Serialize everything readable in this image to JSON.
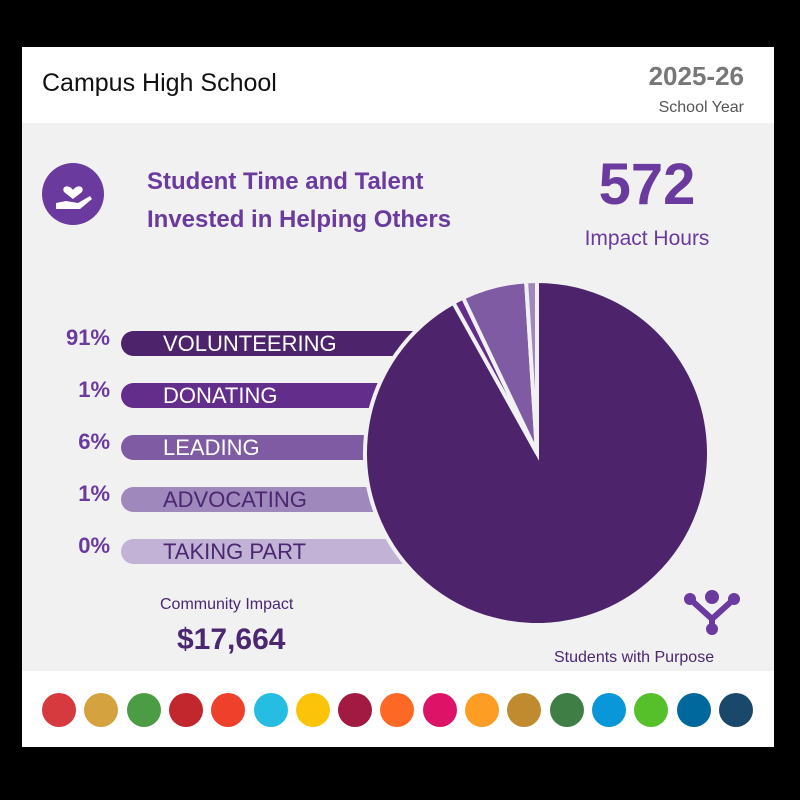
{
  "header": {
    "school": "Campus High School",
    "year": "2025-26",
    "year_label": "School Year"
  },
  "title_lines": [
    "Student Time and Talent",
    "Invested in Helping Others"
  ],
  "impact": {
    "hours": "572",
    "hours_label": "Impact Hours",
    "community_label": "Community Impact",
    "community_value": "$17,664"
  },
  "brand": "Students with Purpose",
  "chart_data": {
    "type": "pie",
    "categories": [
      "VOLUNTEERING",
      "DONATING",
      "LEADING",
      "ADVOCATING",
      "TAKING PART"
    ],
    "values": [
      91,
      1,
      6,
      1,
      0
    ],
    "labels": [
      "91%",
      "1%",
      "6%",
      "1%",
      "0%"
    ],
    "colors": [
      "#4d246c",
      "#632d8c",
      "#7e5ba3",
      "#9f88bc",
      "#c2b3d6"
    ],
    "text_colors": [
      "#ffffff",
      "#ffffff",
      "#ffffff",
      "#4a2770",
      "#4a2770"
    ]
  },
  "sdg_colors": [
    "#d63a3f",
    "#d4a33f",
    "#4c9c45",
    "#c1272d",
    "#ef402b",
    "#26bde2",
    "#fcc30b",
    "#a21942",
    "#fd6925",
    "#dd1367",
    "#fd9d24",
    "#bf8b2e",
    "#3f7e44",
    "#0a97d9",
    "#56c02b",
    "#00689d",
    "#19486a"
  ]
}
